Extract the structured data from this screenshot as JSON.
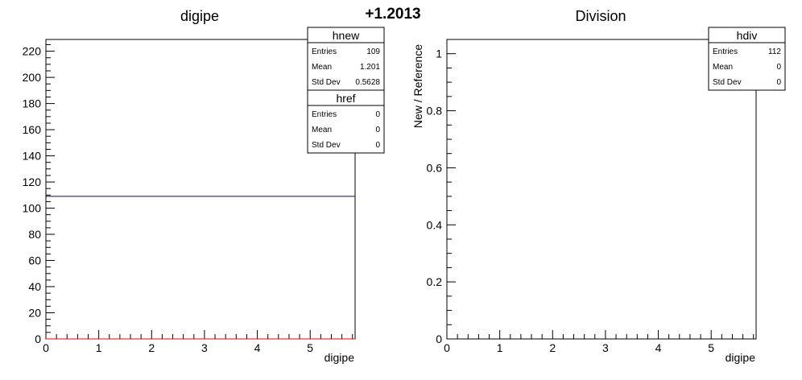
{
  "page_title": "+1.2013",
  "chart_data": [
    {
      "type": "histogram",
      "title": "digipe",
      "xlabel": "digipe",
      "ylabel": "",
      "xlim": [
        0,
        5.85
      ],
      "ylim": [
        0,
        229
      ],
      "x_ticks": [
        0,
        1,
        2,
        3,
        4,
        5
      ],
      "y_ticks": [
        0,
        20,
        40,
        60,
        80,
        100,
        120,
        140,
        160,
        180,
        200,
        220
      ],
      "grid": false,
      "series": [
        {
          "name": "hnew",
          "color": "#000080",
          "x": [
            0,
            5.85
          ],
          "y": [
            109,
            109
          ]
        },
        {
          "name": "href",
          "color": "#ff0000",
          "x": [
            0,
            5.85
          ],
          "y": [
            0,
            0
          ]
        }
      ],
      "stats": [
        {
          "name": "hnew",
          "rows": [
            {
              "label": "Entries",
              "value": "109"
            },
            {
              "label": "Mean",
              "value": "1.201"
            },
            {
              "label": "Std Dev",
              "value": "0.5628"
            }
          ]
        },
        {
          "name": "href",
          "rows": [
            {
              "label": "Entries",
              "value": "0"
            },
            {
              "label": "Mean",
              "value": "0"
            },
            {
              "label": "Std Dev",
              "value": "0"
            }
          ]
        }
      ]
    },
    {
      "type": "histogram",
      "title": "Division",
      "xlabel": "digipe",
      "ylabel": "New / Reference",
      "xlim": [
        0,
        5.85
      ],
      "ylim": [
        0,
        1.05
      ],
      "x_ticks": [
        0,
        1,
        2,
        3,
        4,
        5
      ],
      "y_ticks": [
        0,
        0.2,
        0.4,
        0.6,
        0.8,
        1
      ],
      "grid": false,
      "series": [],
      "stats": [
        {
          "name": "hdiv",
          "rows": [
            {
              "label": "Entries",
              "value": "112"
            },
            {
              "label": "Mean",
              "value": "0"
            },
            {
              "label": "Std Dev",
              "value": "0"
            }
          ]
        }
      ]
    }
  ]
}
